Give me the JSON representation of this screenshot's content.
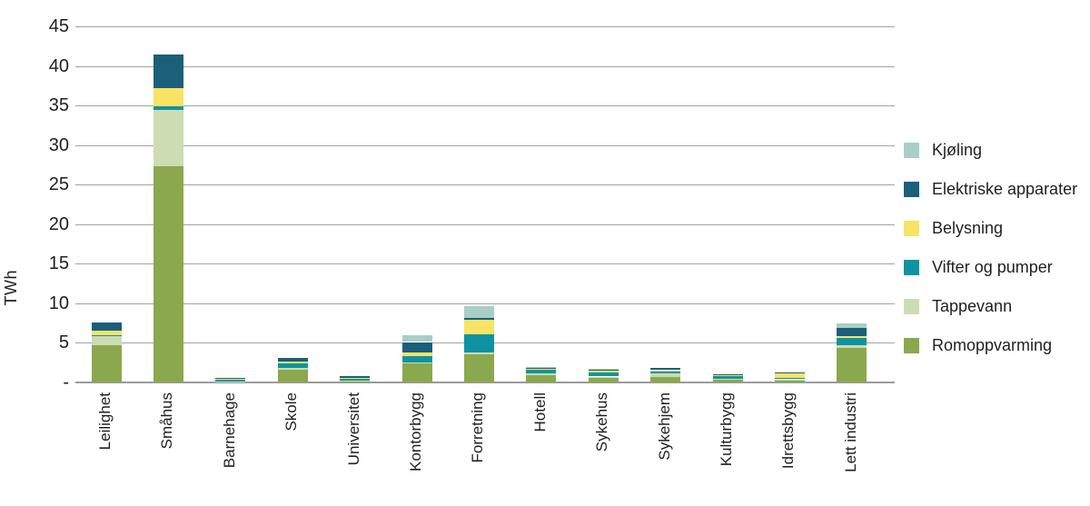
{
  "ylabel": "TWh",
  "chart_data": {
    "type": "bar",
    "stacked": true,
    "title": "",
    "xlabel": "",
    "unit": "TWh",
    "ylim": [
      0,
      45
    ],
    "y_tick_step": 5,
    "y_ticks": [
      "45",
      "40",
      "35",
      "30",
      "25",
      "20",
      "15",
      "10",
      "5",
      "-"
    ],
    "grid": true,
    "legend_position": "right",
    "categories": [
      "Leilighet",
      "Småhus",
      "Barnehage",
      "Skole",
      "Universitet",
      "Kontorbygg",
      "Forretning",
      "Hotell",
      "Sykehus",
      "Sykehjem",
      "Kulturbygg",
      "Idrettsbygg",
      "Lett industri"
    ],
    "series": [
      {
        "name": "Romoppvarming",
        "color": "#8ba84f",
        "values": [
          4.7,
          27.3,
          0.1,
          1.6,
          0.2,
          2.4,
          3.6,
          0.9,
          0.6,
          0.7,
          0.45,
          0.35,
          4.4
        ]
      },
      {
        "name": "Tappevann",
        "color": "#cddcb3",
        "values": [
          1.2,
          7.2,
          0.05,
          0.2,
          0.05,
          0.1,
          0.2,
          0.3,
          0.15,
          0.45,
          0.05,
          0.05,
          0.35
        ]
      },
      {
        "name": "Vifter og pumper",
        "color": "#0f93a3",
        "values": [
          0.1,
          0.4,
          0.2,
          0.6,
          0.25,
          0.8,
          2.3,
          0.4,
          0.55,
          0.3,
          0.35,
          0.15,
          0.85
        ]
      },
      {
        "name": "Belysning",
        "color": "#f8e366",
        "values": [
          0.5,
          2.3,
          0.1,
          0.2,
          0.1,
          0.45,
          1.8,
          0.15,
          0.15,
          0.1,
          0.05,
          0.55,
          0.3
        ]
      },
      {
        "name": "Elektriske apparater",
        "color": "#1b5f7b",
        "values": [
          1.1,
          4.2,
          0.15,
          0.5,
          0.2,
          1.35,
          0.2,
          0.1,
          0.15,
          0.3,
          0.1,
          0.2,
          1.0
        ]
      },
      {
        "name": "Kjøling",
        "color": "#a8cec6",
        "values": [
          0.0,
          0.0,
          0.0,
          0.0,
          0.0,
          0.9,
          1.5,
          0.15,
          0.1,
          0.0,
          0.0,
          0.0,
          0.6
        ]
      }
    ],
    "legend": [
      "Kjøling",
      "Elektriske apparater",
      "Belysning",
      "Vifter og pumper",
      "Tappevann",
      "Romoppvarming"
    ]
  },
  "colors": {
    "gridline": "#a3a3a3",
    "axis": "#9b9b9b",
    "text": "#1f1f1f",
    "background": "#ffffff"
  }
}
